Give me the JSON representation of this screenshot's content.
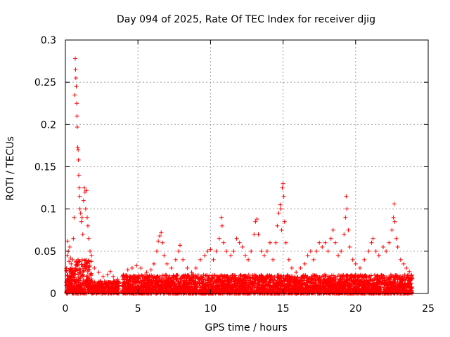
{
  "chart_data": {
    "type": "scatter",
    "title": "Day 094 of 2025, Rate Of TEC Index for receiver djig",
    "xlabel": "GPS time / hours",
    "ylabel": "ROTI / TECUs",
    "xlim": [
      0,
      25
    ],
    "ylim": [
      0,
      0.3
    ],
    "xticks": [
      0,
      5,
      10,
      15,
      20,
      25
    ],
    "xtick_labels": [
      "0",
      "5",
      "10",
      "15",
      "20",
      "25"
    ],
    "yticks": [
      0,
      0.05,
      0.1,
      0.15,
      0.2,
      0.25,
      0.3
    ],
    "ytick_labels": [
      "0",
      "0.05",
      "0.1",
      "0.15",
      "0.2",
      "0.25",
      "0.3"
    ],
    "grid": true,
    "marker": "+",
    "color": "#ff0000",
    "series": [
      {
        "name": "ROTI",
        "points": [
          [
            0.12,
            0.045
          ],
          [
            0.15,
            0.062
          ],
          [
            0.2,
            0.05
          ],
          [
            0.25,
            0.038
          ],
          [
            0.3,
            0.055
          ],
          [
            0.35,
            0.042
          ],
          [
            0.4,
            0.035
          ],
          [
            0.45,
            0.03
          ],
          [
            0.5,
            0.04
          ],
          [
            0.55,
            0.065
          ],
          [
            0.6,
            0.09
          ],
          [
            0.65,
            0.235
          ],
          [
            0.68,
            0.278
          ],
          [
            0.7,
            0.265
          ],
          [
            0.72,
            0.255
          ],
          [
            0.75,
            0.245
          ],
          [
            0.78,
            0.225
          ],
          [
            0.8,
            0.21
          ],
          [
            0.82,
            0.197
          ],
          [
            0.85,
            0.173
          ],
          [
            0.88,
            0.17
          ],
          [
            0.9,
            0.158
          ],
          [
            0.92,
            0.14
          ],
          [
            0.95,
            0.125
          ],
          [
            0.98,
            0.115
          ],
          [
            1.0,
            0.1
          ],
          [
            1.05,
            0.095
          ],
          [
            1.1,
            0.085
          ],
          [
            1.15,
            0.09
          ],
          [
            1.2,
            0.07
          ],
          [
            1.25,
            0.11
          ],
          [
            1.3,
            0.125
          ],
          [
            1.35,
            0.12
          ],
          [
            1.4,
            0.1
          ],
          [
            1.45,
            0.122
          ],
          [
            1.5,
            0.09
          ],
          [
            1.55,
            0.08
          ],
          [
            1.6,
            0.065
          ],
          [
            1.7,
            0.05
          ],
          [
            1.8,
            0.045
          ],
          [
            2.0,
            0.03
          ],
          [
            2.3,
            0.025
          ],
          [
            2.6,
            0.02
          ],
          [
            2.9,
            0.022
          ],
          [
            3.1,
            0.026
          ],
          [
            3.3,
            0.02
          ],
          [
            3.6,
            0.017
          ],
          [
            4.0,
            0.022
          ],
          [
            4.3,
            0.028
          ],
          [
            4.6,
            0.03
          ],
          [
            4.9,
            0.033
          ],
          [
            5.2,
            0.03
          ],
          [
            5.6,
            0.025
          ],
          [
            5.9,
            0.028
          ],
          [
            6.1,
            0.035
          ],
          [
            6.3,
            0.05
          ],
          [
            6.4,
            0.062
          ],
          [
            6.5,
            0.068
          ],
          [
            6.6,
            0.072
          ],
          [
            6.7,
            0.06
          ],
          [
            6.8,
            0.045
          ],
          [
            7.0,
            0.035
          ],
          [
            7.3,
            0.03
          ],
          [
            7.6,
            0.04
          ],
          [
            7.8,
            0.05
          ],
          [
            7.9,
            0.057
          ],
          [
            8.1,
            0.04
          ],
          [
            8.4,
            0.03
          ],
          [
            8.7,
            0.025
          ],
          [
            9.0,
            0.03
          ],
          [
            9.3,
            0.04
          ],
          [
            9.6,
            0.045
          ],
          [
            9.8,
            0.05
          ],
          [
            10.0,
            0.052
          ],
          [
            10.2,
            0.04
          ],
          [
            10.4,
            0.05
          ],
          [
            10.6,
            0.065
          ],
          [
            10.75,
            0.09
          ],
          [
            10.8,
            0.08
          ],
          [
            10.9,
            0.06
          ],
          [
            11.1,
            0.05
          ],
          [
            11.4,
            0.045
          ],
          [
            11.6,
            0.05
          ],
          [
            11.8,
            0.065
          ],
          [
            12.0,
            0.06
          ],
          [
            12.2,
            0.055
          ],
          [
            12.4,
            0.045
          ],
          [
            12.6,
            0.04
          ],
          [
            12.8,
            0.05
          ],
          [
            13.0,
            0.07
          ],
          [
            13.1,
            0.085
          ],
          [
            13.2,
            0.088
          ],
          [
            13.3,
            0.07
          ],
          [
            13.5,
            0.05
          ],
          [
            13.7,
            0.045
          ],
          [
            13.9,
            0.05
          ],
          [
            14.1,
            0.06
          ],
          [
            14.3,
            0.04
          ],
          [
            14.5,
            0.06
          ],
          [
            14.6,
            0.08
          ],
          [
            14.7,
            0.095
          ],
          [
            14.8,
            0.105
          ],
          [
            14.85,
            0.1
          ],
          [
            14.9,
            0.075
          ],
          [
            14.95,
            0.125
          ],
          [
            15.0,
            0.13
          ],
          [
            15.05,
            0.115
          ],
          [
            15.1,
            0.085
          ],
          [
            15.2,
            0.06
          ],
          [
            15.4,
            0.04
          ],
          [
            15.6,
            0.03
          ],
          [
            15.9,
            0.025
          ],
          [
            16.2,
            0.03
          ],
          [
            16.5,
            0.035
          ],
          [
            16.7,
            0.045
          ],
          [
            16.9,
            0.05
          ],
          [
            17.1,
            0.04
          ],
          [
            17.3,
            0.05
          ],
          [
            17.5,
            0.06
          ],
          [
            17.7,
            0.055
          ],
          [
            17.9,
            0.06
          ],
          [
            18.1,
            0.05
          ],
          [
            18.3,
            0.065
          ],
          [
            18.45,
            0.075
          ],
          [
            18.6,
            0.06
          ],
          [
            18.8,
            0.045
          ],
          [
            19.0,
            0.05
          ],
          [
            19.2,
            0.07
          ],
          [
            19.3,
            0.09
          ],
          [
            19.35,
            0.115
          ],
          [
            19.4,
            0.1
          ],
          [
            19.5,
            0.075
          ],
          [
            19.6,
            0.055
          ],
          [
            19.8,
            0.04
          ],
          [
            20.0,
            0.035
          ],
          [
            20.3,
            0.03
          ],
          [
            20.6,
            0.04
          ],
          [
            20.9,
            0.05
          ],
          [
            21.1,
            0.06
          ],
          [
            21.2,
            0.065
          ],
          [
            21.4,
            0.05
          ],
          [
            21.6,
            0.045
          ],
          [
            21.9,
            0.055
          ],
          [
            22.1,
            0.05
          ],
          [
            22.3,
            0.06
          ],
          [
            22.5,
            0.075
          ],
          [
            22.6,
            0.09
          ],
          [
            22.65,
            0.106
          ],
          [
            22.7,
            0.085
          ],
          [
            22.8,
            0.065
          ],
          [
            22.9,
            0.055
          ],
          [
            23.1,
            0.04
          ],
          [
            23.3,
            0.035
          ],
          [
            23.5,
            0.03
          ],
          [
            23.7,
            0.026
          ],
          [
            23.85,
            0.022
          ]
        ]
      }
    ]
  }
}
